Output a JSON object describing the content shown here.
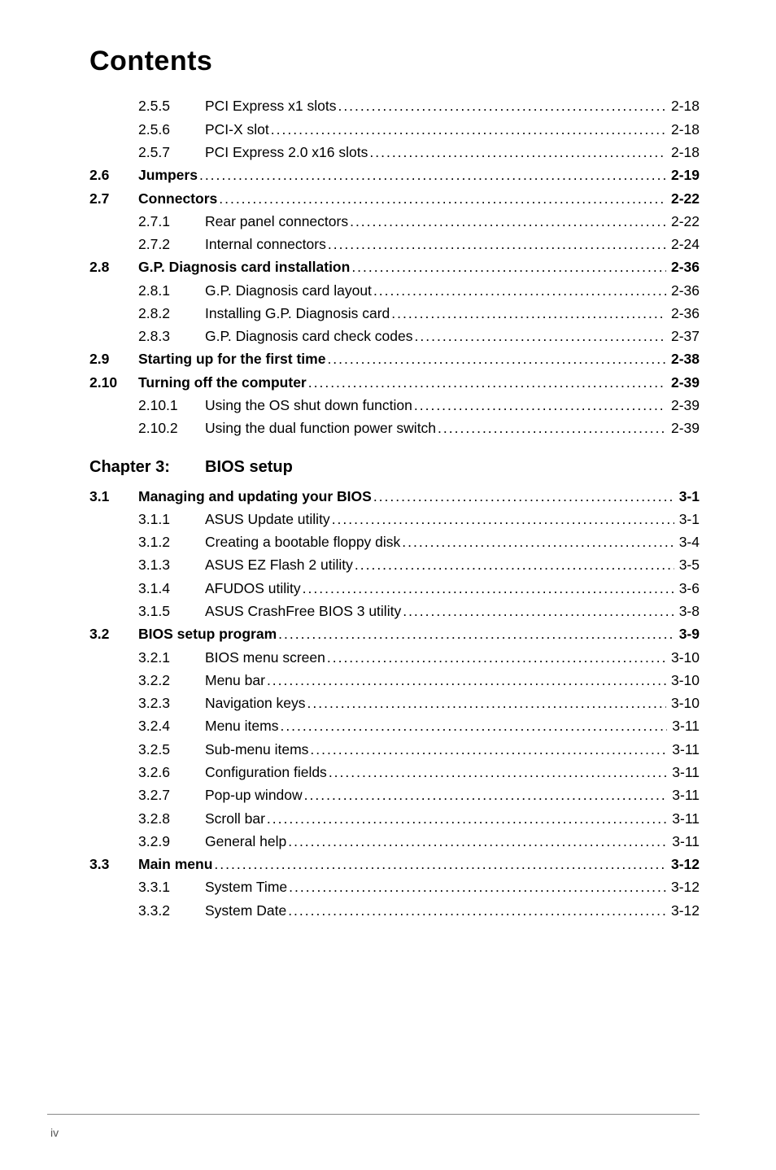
{
  "heading": "Contents",
  "chapter": {
    "label": "Chapter 3:",
    "title": "BIOS setup"
  },
  "entries": [
    {
      "main": "",
      "sub": "2.5.5",
      "title": "PCI Express x1 slots",
      "page": "2-18",
      "bold_main": false,
      "bold_title": false,
      "bold_page": false
    },
    {
      "main": "",
      "sub": "2.5.6",
      "title": "PCI-X slot",
      "page": "2-18",
      "bold_main": false,
      "bold_title": false,
      "bold_page": false
    },
    {
      "main": "",
      "sub": "2.5.7",
      "title": "PCI Express 2.0 x16 slots",
      "page": "2-18",
      "bold_main": false,
      "bold_title": false,
      "bold_page": false
    },
    {
      "main": "2.6",
      "sub": "",
      "title": "Jumpers",
      "page": "2-19",
      "bold_main": true,
      "bold_title": true,
      "bold_page": true
    },
    {
      "main": "2.7",
      "sub": "",
      "title": "Connectors",
      "page": "2-22",
      "bold_main": true,
      "bold_title": true,
      "bold_page": true
    },
    {
      "main": "",
      "sub": "2.7.1",
      "title": "Rear panel connectors",
      "page": "2-22",
      "bold_main": false,
      "bold_title": false,
      "bold_page": false
    },
    {
      "main": "",
      "sub": "2.7.2",
      "title": "Internal connectors",
      "page": "2-24",
      "bold_main": false,
      "bold_title": false,
      "bold_page": false
    },
    {
      "main": "2.8",
      "sub": "",
      "title": "G.P. Diagnosis card installation",
      "page": "2-36",
      "bold_main": true,
      "bold_title": true,
      "bold_page": true
    },
    {
      "main": "",
      "sub": "2.8.1",
      "title": "G.P. Diagnosis card layout",
      "page": "2-36",
      "bold_main": false,
      "bold_title": false,
      "bold_page": false
    },
    {
      "main": "",
      "sub": "2.8.2",
      "title": "Installing G.P. Diagnosis card",
      "page": "2-36",
      "bold_main": false,
      "bold_title": false,
      "bold_page": false
    },
    {
      "main": "",
      "sub": "2.8.3",
      "title": "G.P. Diagnosis card check codes",
      "page": "2-37",
      "bold_main": false,
      "bold_title": false,
      "bold_page": false
    },
    {
      "main": "2.9",
      "sub": "",
      "title": "Starting up for the first time",
      "page": "2-38",
      "bold_main": true,
      "bold_title": true,
      "bold_page": true
    },
    {
      "main": "2.10",
      "sub": "",
      "title": "Turning off the computer",
      "page": "2-39",
      "bold_main": true,
      "bold_title": true,
      "bold_page": true
    },
    {
      "main": "",
      "sub": "2.10.1",
      "title": "Using the OS shut down function",
      "page": "2-39",
      "bold_main": false,
      "bold_title": false,
      "bold_page": false
    },
    {
      "main": "",
      "sub": "2.10.2",
      "title": "Using the dual function power switch",
      "page": "2-39",
      "bold_main": false,
      "bold_title": false,
      "bold_page": false
    }
  ],
  "entries2": [
    {
      "main": "3.1",
      "sub": "",
      "title": "Managing and updating your BIOS",
      "page": "3-1",
      "bold_main": true,
      "bold_title": true,
      "bold_page": true
    },
    {
      "main": "",
      "sub": "3.1.1",
      "title": "ASUS Update utility",
      "page": "3-1",
      "bold_main": false,
      "bold_title": false,
      "bold_page": false
    },
    {
      "main": "",
      "sub": "3.1.2",
      "title": "Creating a bootable floppy disk",
      "page": "3-4",
      "bold_main": false,
      "bold_title": false,
      "bold_page": false
    },
    {
      "main": "",
      "sub": "3.1.3",
      "title": "ASUS EZ Flash 2 utility",
      "page": "3-5",
      "bold_main": false,
      "bold_title": false,
      "bold_page": false
    },
    {
      "main": "",
      "sub": "3.1.4",
      "title": "AFUDOS utility",
      "page": "3-6",
      "bold_main": false,
      "bold_title": false,
      "bold_page": false
    },
    {
      "main": "",
      "sub": "3.1.5",
      "title": "ASUS CrashFree BIOS 3 utility",
      "page": "3-8",
      "bold_main": false,
      "bold_title": false,
      "bold_page": false
    },
    {
      "main": "3.2",
      "sub": "",
      "title": "BIOS setup program",
      "page": "3-9",
      "bold_main": true,
      "bold_title": true,
      "bold_page": true
    },
    {
      "main": "",
      "sub": "3.2.1",
      "title": "BIOS menu screen",
      "page": "3-10",
      "bold_main": false,
      "bold_title": false,
      "bold_page": false
    },
    {
      "main": "",
      "sub": "3.2.2",
      "title": "Menu bar",
      "page": "3-10",
      "bold_main": false,
      "bold_title": false,
      "bold_page": false
    },
    {
      "main": "",
      "sub": "3.2.3",
      "title": "Navigation keys",
      "page": "3-10",
      "bold_main": false,
      "bold_title": false,
      "bold_page": false
    },
    {
      "main": "",
      "sub": "3.2.4",
      "title": "Menu items",
      "page": "3-11",
      "bold_main": false,
      "bold_title": false,
      "bold_page": false
    },
    {
      "main": "",
      "sub": "3.2.5",
      "title": "Sub-menu items",
      "page": "3-11",
      "bold_main": false,
      "bold_title": false,
      "bold_page": false
    },
    {
      "main": "",
      "sub": "3.2.6",
      "title": "Configuration fields",
      "page": "3-11",
      "bold_main": false,
      "bold_title": false,
      "bold_page": false
    },
    {
      "main": "",
      "sub": "3.2.7",
      "title": "Pop-up window",
      "page": "3-11",
      "bold_main": false,
      "bold_title": false,
      "bold_page": false
    },
    {
      "main": "",
      "sub": "3.2.8",
      "title": "Scroll bar",
      "page": "3-11",
      "bold_main": false,
      "bold_title": false,
      "bold_page": false
    },
    {
      "main": "",
      "sub": "3.2.9",
      "title": "General help",
      "page": "3-11",
      "bold_main": false,
      "bold_title": false,
      "bold_page": false
    },
    {
      "main": "3.3",
      "sub": "",
      "title": "Main menu",
      "page": "3-12",
      "bold_main": true,
      "bold_title": true,
      "bold_page": true
    },
    {
      "main": "",
      "sub": "3.3.1",
      "title": "System Time",
      "page": "3-12",
      "bold_main": false,
      "bold_title": false,
      "bold_page": false
    },
    {
      "main": "",
      "sub": "3.3.2",
      "title": "System Date",
      "page": "3-12",
      "bold_main": false,
      "bold_title": false,
      "bold_page": false
    }
  ],
  "footer": {
    "page_number": "iv"
  },
  "style": {
    "background_color": "#ffffff",
    "text_color": "#000000",
    "footer_text_color": "#555555",
    "rule_color": "#888888",
    "heading_fontsize": 34,
    "body_fontsize": 17.5,
    "chapter_fontsize": 20,
    "footer_fontsize": 14,
    "font_family": "Arial, Helvetica, sans-serif"
  }
}
